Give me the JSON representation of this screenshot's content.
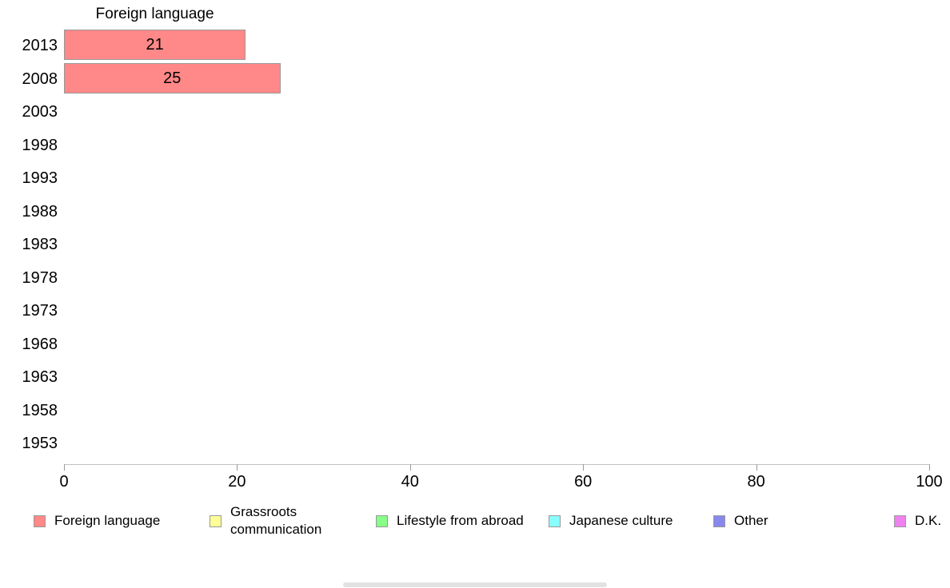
{
  "chart_data": {
    "type": "bar",
    "orientation": "horizontal",
    "title": "Foreign language",
    "series_name": "Foreign language",
    "categories": [
      "2013",
      "2008",
      "2003",
      "1998",
      "1993",
      "1988",
      "1983",
      "1978",
      "1973",
      "1968",
      "1963",
      "1958",
      "1953"
    ],
    "values": [
      21,
      25,
      null,
      null,
      null,
      null,
      null,
      null,
      null,
      null,
      null,
      null,
      null
    ],
    "bar_labels": [
      "21",
      "25"
    ],
    "xlabel": "",
    "ylabel": "",
    "xlim": [
      0,
      100
    ],
    "xticks": [
      0,
      20,
      40,
      60,
      80,
      100
    ],
    "grid": false,
    "legend_position": "bottom",
    "bar_fill_color": "#ff8888",
    "bar_border_color": "#999999",
    "axis_line_color": "#c2c2c2",
    "legend": [
      {
        "label": "Foreign language",
        "color": "#ff8888"
      },
      {
        "label": "Grassroots\ncommunication",
        "color": "#ffff99"
      },
      {
        "label": "Lifestyle from abroad",
        "color": "#88ff88"
      },
      {
        "label": "Japanese culture",
        "color": "#88ffff"
      },
      {
        "label": "Other",
        "color": "#8888ee"
      },
      {
        "label": "D.K.",
        "color": "#ee82ee"
      }
    ]
  }
}
